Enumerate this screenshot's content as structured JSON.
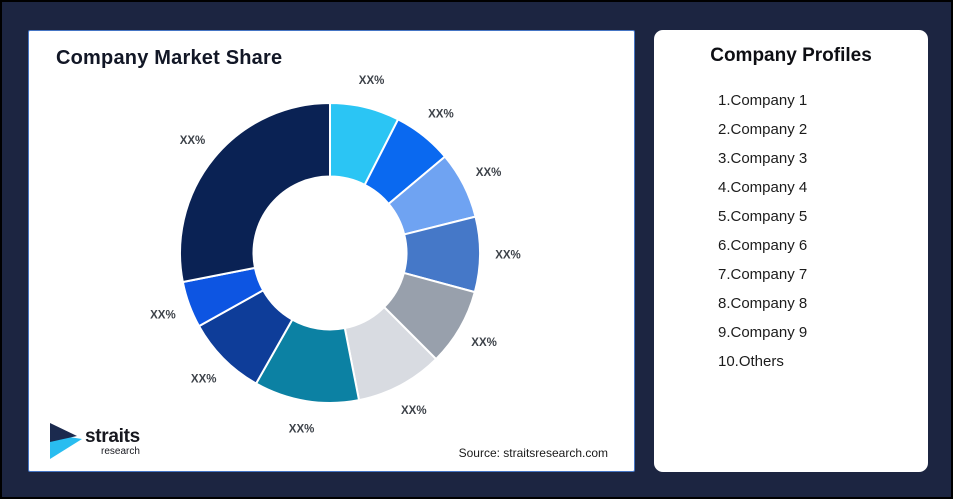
{
  "page": {
    "background_color": "#1C2541",
    "frame_border_color": "#000000"
  },
  "chart_card": {
    "title": "Company Market Share",
    "source": "Source: straitsresearch.com",
    "border_color": "#4575C4"
  },
  "logo": {
    "name": "straits",
    "subtext": "research",
    "mark_dark_color": "#1B2A4E",
    "mark_cyan_color": "#29BDF0"
  },
  "profiles_card": {
    "title": "Company Profiles",
    "items": [
      "1.Company 1",
      "2.Company 2",
      "3.Company 3",
      "4.Company 4",
      "5.Company 5",
      "6.Company 6",
      "7.Company 7",
      "8.Company 8",
      "9.Company 9",
      "10.Others"
    ]
  },
  "chart_data": {
    "type": "pie",
    "subtype": "donut",
    "title": "Company Market Share",
    "start_angle_deg": 0,
    "inner_radius_ratio": 0.51,
    "legend_position": "none",
    "label_text_color": "#3D4249",
    "separator_color": "#ffffff",
    "segments": [
      {
        "label": "XX%",
        "value": 7.5,
        "color": "#2BC5F4"
      },
      {
        "label": "XX%",
        "value": 6.4,
        "color": "#0A69F0"
      },
      {
        "label": "XX%",
        "value": 7.2,
        "color": "#6FA3F2"
      },
      {
        "label": "XX%",
        "value": 8.1,
        "color": "#4578C8"
      },
      {
        "label": "XX%",
        "value": 8.3,
        "color": "#98A0AC"
      },
      {
        "label": "XX%",
        "value": 9.4,
        "color": "#D8DBE1"
      },
      {
        "label": "XX%",
        "value": 11.3,
        "color": "#0C81A3"
      },
      {
        "label": "XX%",
        "value": 8.7,
        "color": "#0E3D99"
      },
      {
        "label": "XX%",
        "value": 5.0,
        "color": "#0D55E2"
      },
      {
        "label": "XX%",
        "value": 28.1,
        "color": "#0A2254"
      }
    ],
    "values_note": "values estimated from arc angles; on-chart labels show XX% placeholders"
  }
}
